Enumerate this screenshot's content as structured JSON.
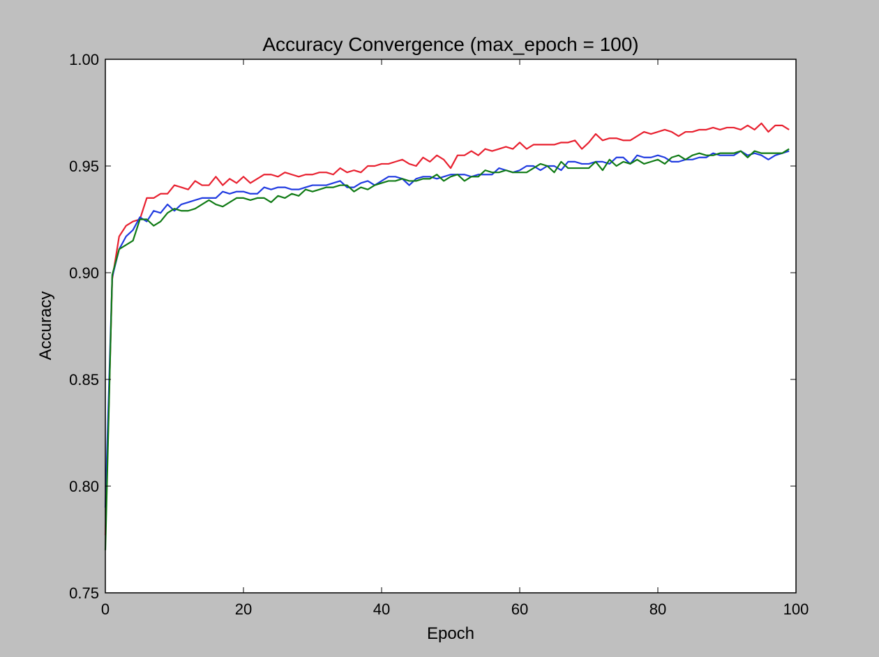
{
  "chart_data": {
    "type": "line",
    "title": "Accuracy Convergence (max_epoch = 100)",
    "xlabel": "Epoch",
    "ylabel": "Accuracy",
    "xlim": [
      0,
      100
    ],
    "ylim": [
      0.75,
      1.0
    ],
    "x_ticks": [
      "0",
      "20",
      "40",
      "60",
      "80",
      "100"
    ],
    "y_ticks": [
      "0.75",
      "0.80",
      "0.85",
      "0.90",
      "0.95",
      "1.00"
    ],
    "grid": false,
    "legend": "none",
    "x": [
      0,
      1,
      2,
      3,
      4,
      5,
      6,
      7,
      8,
      9,
      10,
      11,
      12,
      13,
      14,
      15,
      16,
      17,
      18,
      19,
      20,
      21,
      22,
      23,
      24,
      25,
      26,
      27,
      28,
      29,
      30,
      31,
      32,
      33,
      34,
      35,
      36,
      37,
      38,
      39,
      40,
      41,
      42,
      43,
      44,
      45,
      46,
      47,
      48,
      49,
      50,
      51,
      52,
      53,
      54,
      55,
      56,
      57,
      58,
      59,
      60,
      61,
      62,
      63,
      64,
      65,
      66,
      67,
      68,
      69,
      70,
      71,
      72,
      73,
      74,
      75,
      76,
      77,
      78,
      79,
      80,
      81,
      82,
      83,
      84,
      85,
      86,
      87,
      88,
      89,
      90,
      91,
      92,
      93,
      94,
      95,
      96,
      97,
      98,
      99
    ],
    "series": [
      {
        "color": "#e8202f",
        "values": [
          0.777,
          0.897,
          0.917,
          0.922,
          0.924,
          0.925,
          0.935,
          0.935,
          0.937,
          0.937,
          0.941,
          0.94,
          0.939,
          0.943,
          0.941,
          0.941,
          0.945,
          0.941,
          0.944,
          0.942,
          0.945,
          0.942,
          0.944,
          0.946,
          0.946,
          0.945,
          0.947,
          0.946,
          0.945,
          0.946,
          0.946,
          0.947,
          0.947,
          0.946,
          0.949,
          0.947,
          0.948,
          0.947,
          0.95,
          0.95,
          0.951,
          0.951,
          0.952,
          0.953,
          0.951,
          0.95,
          0.954,
          0.952,
          0.955,
          0.953,
          0.949,
          0.955,
          0.955,
          0.957,
          0.955,
          0.958,
          0.957,
          0.958,
          0.959,
          0.958,
          0.961,
          0.958,
          0.96,
          0.96,
          0.96,
          0.96,
          0.961,
          0.961,
          0.962,
          0.958,
          0.961,
          0.965,
          0.962,
          0.963,
          0.963,
          0.962,
          0.962,
          0.964,
          0.966,
          0.965,
          0.966,
          0.967,
          0.966,
          0.964,
          0.966,
          0.966,
          0.967,
          0.967,
          0.968,
          0.967,
          0.968,
          0.968,
          0.967,
          0.969,
          0.967,
          0.97,
          0.966,
          0.969,
          0.969,
          0.967
        ]
      },
      {
        "color": "#1f3ae0",
        "values": [
          0.79,
          0.898,
          0.911,
          0.917,
          0.92,
          0.926,
          0.924,
          0.929,
          0.928,
          0.932,
          0.929,
          0.932,
          0.933,
          0.934,
          0.935,
          0.935,
          0.935,
          0.938,
          0.937,
          0.938,
          0.938,
          0.937,
          0.937,
          0.94,
          0.939,
          0.94,
          0.94,
          0.939,
          0.939,
          0.94,
          0.941,
          0.941,
          0.941,
          0.942,
          0.943,
          0.94,
          0.94,
          0.942,
          0.943,
          0.941,
          0.943,
          0.945,
          0.945,
          0.944,
          0.941,
          0.944,
          0.945,
          0.945,
          0.944,
          0.945,
          0.946,
          0.946,
          0.946,
          0.945,
          0.946,
          0.946,
          0.946,
          0.949,
          0.948,
          0.947,
          0.948,
          0.95,
          0.95,
          0.948,
          0.95,
          0.95,
          0.948,
          0.952,
          0.952,
          0.951,
          0.951,
          0.952,
          0.952,
          0.951,
          0.954,
          0.954,
          0.951,
          0.955,
          0.954,
          0.954,
          0.955,
          0.954,
          0.952,
          0.952,
          0.953,
          0.953,
          0.954,
          0.954,
          0.956,
          0.955,
          0.955,
          0.955,
          0.957,
          0.955,
          0.956,
          0.955,
          0.953,
          0.955,
          0.956,
          0.957
        ]
      },
      {
        "color": "#0f7a14",
        "values": [
          0.77,
          0.899,
          0.911,
          0.913,
          0.915,
          0.925,
          0.925,
          0.922,
          0.924,
          0.928,
          0.93,
          0.929,
          0.929,
          0.93,
          0.932,
          0.934,
          0.932,
          0.931,
          0.933,
          0.935,
          0.935,
          0.934,
          0.935,
          0.935,
          0.933,
          0.936,
          0.935,
          0.937,
          0.936,
          0.939,
          0.938,
          0.939,
          0.94,
          0.94,
          0.941,
          0.941,
          0.938,
          0.94,
          0.939,
          0.941,
          0.942,
          0.943,
          0.943,
          0.944,
          0.943,
          0.943,
          0.944,
          0.944,
          0.946,
          0.943,
          0.945,
          0.946,
          0.943,
          0.945,
          0.945,
          0.948,
          0.947,
          0.947,
          0.948,
          0.947,
          0.947,
          0.947,
          0.949,
          0.951,
          0.95,
          0.947,
          0.952,
          0.949,
          0.949,
          0.949,
          0.949,
          0.952,
          0.948,
          0.953,
          0.95,
          0.952,
          0.951,
          0.953,
          0.951,
          0.952,
          0.953,
          0.951,
          0.954,
          0.955,
          0.953,
          0.955,
          0.956,
          0.955,
          0.955,
          0.956,
          0.956,
          0.956,
          0.957,
          0.954,
          0.957,
          0.956,
          0.956,
          0.956,
          0.956,
          0.958
        ]
      }
    ]
  }
}
